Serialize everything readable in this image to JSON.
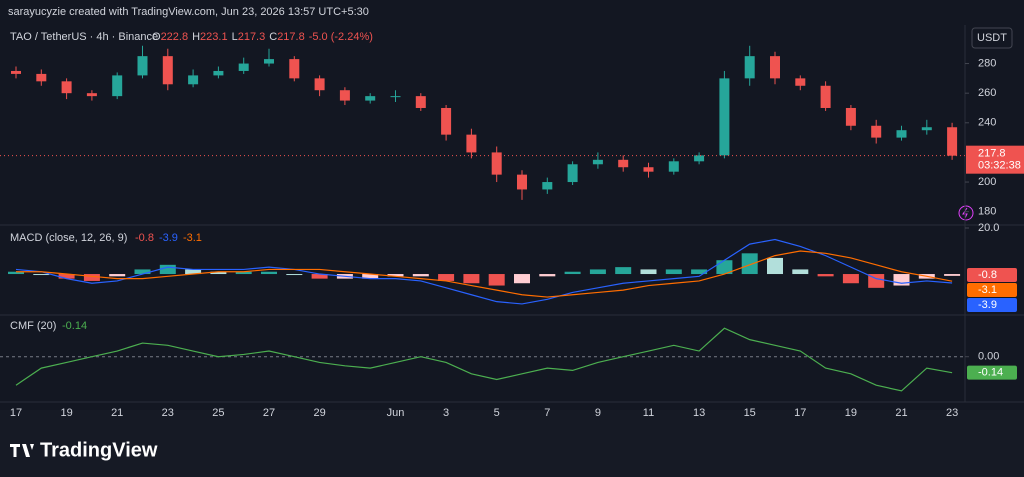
{
  "header": {
    "credit": "sarayucyzie created with TradingView.com, Jun 23, 2026 13:57 UTC+5:30",
    "currency_button": "USDT",
    "logo": "TradingView"
  },
  "chart_data": [
    {
      "type": "candlestick",
      "title": "TAO / TetherUS · 4h · Binance",
      "ohlc_labels": [
        "O",
        "H",
        "L",
        "C"
      ],
      "ohlc_values": [
        222.8,
        223.1,
        217.3,
        217.8
      ],
      "change": "-5.0 (-2.24%)",
      "countdown": "03:32:38",
      "categories": [
        "17",
        null,
        "19",
        null,
        "21",
        null,
        "23",
        null,
        "25",
        null,
        "27",
        null,
        "29",
        null,
        null,
        "Jun",
        null,
        "3",
        null,
        "5",
        null,
        "7",
        null,
        "9",
        null,
        "11",
        null,
        "13",
        null,
        "15",
        null,
        "17",
        null,
        "19",
        null,
        "21",
        null,
        "23"
      ],
      "open": [
        275,
        273,
        268,
        260,
        258,
        272,
        285,
        266,
        272,
        275,
        280,
        283,
        270,
        262,
        255,
        258,
        258,
        250,
        232,
        220,
        205,
        195,
        200,
        212,
        215,
        210,
        207,
        214,
        218,
        270,
        285,
        270,
        265,
        250,
        238,
        230,
        235,
        237
      ],
      "high": [
        278,
        276,
        270,
        262,
        274,
        292,
        290,
        276,
        278,
        284,
        290,
        285,
        272,
        264,
        260,
        262,
        260,
        252,
        236,
        224,
        208,
        203,
        214,
        220,
        218,
        213,
        216,
        220,
        275,
        292,
        288,
        272,
        268,
        252,
        242,
        238,
        242,
        240
      ],
      "low": [
        270,
        265,
        256,
        255,
        256,
        270,
        262,
        264,
        270,
        273,
        278,
        268,
        258,
        252,
        253,
        254,
        248,
        228,
        216,
        200,
        188,
        192,
        198,
        209,
        207,
        203,
        205,
        212,
        216,
        265,
        266,
        262,
        248,
        235,
        226,
        228,
        232,
        215
      ],
      "close": [
        273,
        268,
        260,
        258,
        272,
        285,
        266,
        272,
        275,
        280,
        283,
        270,
        262,
        255,
        258,
        258,
        250,
        232,
        220,
        205,
        195,
        200,
        212,
        215,
        210,
        207,
        214,
        218,
        270,
        285,
        270,
        265,
        250,
        238,
        230,
        235,
        237,
        217.8
      ],
      "up_color": "#26a69a",
      "down_color": "#ef5350",
      "ylim": [
        171,
        304
      ],
      "yticks": [
        180,
        200,
        240,
        260,
        280
      ]
    },
    {
      "type": "macd",
      "title": "MACD (close, 12, 26, 9)",
      "series": [
        {
          "kind": "histogram",
          "up_color": "#26a69a",
          "down_color": "#ef5350",
          "values": [
            1,
            0,
            -2,
            -3,
            -1,
            2,
            4,
            2,
            1,
            1,
            1,
            0,
            -2,
            -2,
            -2,
            -1,
            -1,
            -3,
            -4,
            -5,
            -4,
            -1,
            1,
            2,
            3,
            2,
            2,
            2,
            6,
            9,
            7,
            2,
            -1,
            -4,
            -6,
            -5,
            -2,
            -0.8
          ]
        },
        {
          "kind": "line",
          "color": "#2962ff",
          "values": [
            2,
            1,
            -2,
            -4,
            -3,
            0,
            3,
            2,
            2,
            2,
            3,
            2,
            0,
            -1,
            -2,
            -2,
            -3,
            -6,
            -9,
            -12,
            -13,
            -11,
            -8,
            -6,
            -4,
            -3,
            -2,
            -1,
            6,
            13,
            15,
            12,
            8,
            3,
            -2,
            -4,
            -3,
            -3.9
          ]
        },
        {
          "kind": "line",
          "color": "#ff6d00",
          "values": [
            1,
            1,
            0,
            -1,
            -2,
            -2,
            -1,
            0,
            1,
            1,
            2,
            2,
            2,
            1,
            0,
            -1,
            -2,
            -3,
            -5,
            -7,
            -9,
            -10,
            -9,
            -8,
            -7,
            -5,
            -4,
            -3,
            0,
            4,
            8,
            10,
            9,
            7,
            4,
            1,
            -1,
            -3.1
          ]
        }
      ],
      "ylim": [
        -17.8,
        20
      ],
      "yticks": [
        {
          "value": 20,
          "label": "20.0"
        }
      ]
    },
    {
      "type": "line",
      "title": "CMF (20)",
      "color": "#4caf50",
      "values": [
        -0.25,
        -0.1,
        -0.05,
        0,
        0.05,
        0.12,
        0.1,
        0.05,
        0,
        0.02,
        0.05,
        0,
        -0.05,
        -0.08,
        -0.1,
        -0.05,
        0,
        -0.05,
        -0.15,
        -0.2,
        -0.15,
        -0.1,
        -0.12,
        -0.05,
        0,
        0.05,
        0.1,
        0.05,
        0.25,
        0.15,
        0.1,
        0.05,
        -0.1,
        -0.15,
        -0.25,
        -0.3,
        -0.1,
        -0.14
      ],
      "ylim": [
        -0.38,
        0.34
      ],
      "yticks": [
        {
          "value": 0,
          "label": "0.00"
        }
      ]
    }
  ]
}
